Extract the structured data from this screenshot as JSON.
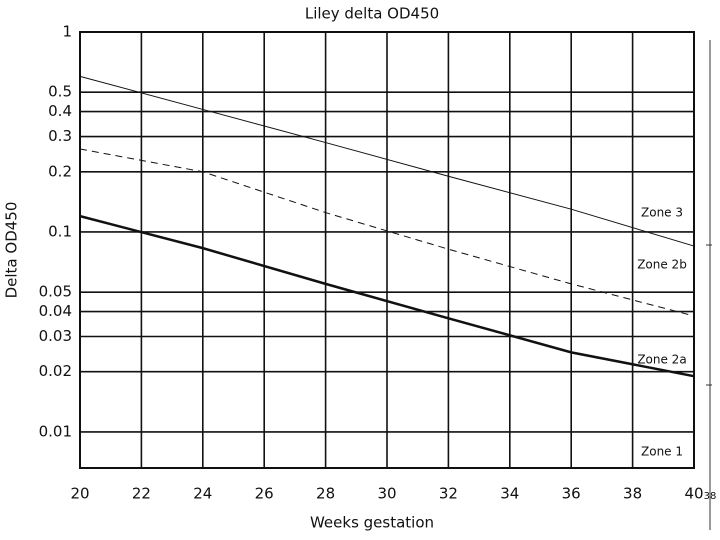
{
  "chart_data": {
    "type": "line",
    "title": "Liley delta OD450",
    "x_label": "Weeks gestation",
    "y_label": "Delta OD450",
    "x": [
      20,
      24,
      28,
      32,
      36,
      40
    ],
    "series": [
      {
        "color": "#111111",
        "linestyle": "solid",
        "linewidth": 1,
        "values": [
          0.6,
          0.41,
          0.28,
          0.19,
          0.13,
          0.085
        ]
      },
      {
        "color": "#111111",
        "linestyle": "dashed",
        "linewidth": 1,
        "values": [
          0.26,
          0.2,
          0.125,
          0.082,
          0.055,
          0.038
        ]
      },
      {
        "color": "#111111",
        "linestyle": "solid",
        "linewidth": 2.5,
        "values": [
          0.12,
          0.083,
          0.055,
          0.037,
          0.025,
          0.019
        ]
      }
    ],
    "xlim": [
      20,
      40
    ],
    "xticks": [
      20,
      22,
      24,
      26,
      28,
      30,
      32,
      34,
      36,
      38,
      40
    ],
    "ylim": [
      0.0066,
      1
    ],
    "yticks": [
      1,
      0.5,
      0.4,
      0.3,
      0.2,
      0.1,
      0.05,
      0.04,
      0.03,
      0.02,
      0.01
    ],
    "log_y": true,
    "grid": true,
    "annotations": [
      "Zone 3",
      "Zone 2b",
      "Zone 2a",
      "Zone 1",
      "38"
    ]
  }
}
